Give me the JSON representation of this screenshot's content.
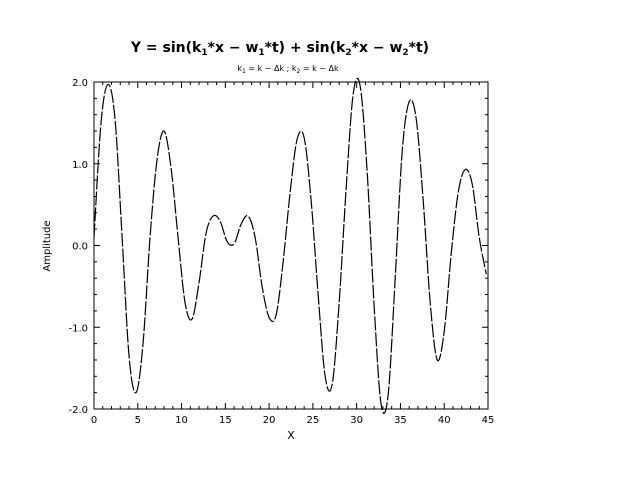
{
  "chart_data": {
    "type": "line",
    "title_parts": {
      "t1": "Y = sin(k",
      "s1": "1",
      "t2": "*x − w",
      "s2": "1",
      "t3": "*t) + sin(k",
      "s3": "2",
      "t4": "*x − w",
      "s4": "2",
      "t5": "*t)"
    },
    "subtitle_parts": {
      "a": "k",
      "b": "1",
      "c": " = k − Δk ; k",
      "d": "2",
      "e": " = k − Δk"
    },
    "xlabel": "X",
    "ylabel": "Amplitude",
    "xlim": [
      0,
      45
    ],
    "ylim": [
      -2.0,
      2.0
    ],
    "xticks": [
      0,
      5,
      10,
      15,
      20,
      25,
      30,
      35,
      40,
      45
    ],
    "xtick_labels": [
      "0",
      "5",
      "10",
      "15",
      "20",
      "25",
      "30",
      "35",
      "40",
      "45"
    ],
    "yticks": [
      -2.0,
      -1.0,
      0.0,
      1.0,
      2.0
    ],
    "ytick_labels": [
      "-2.0",
      "-1.0",
      "0.0",
      "1.0",
      "2.0"
    ],
    "grid": false,
    "line_color": "#000000",
    "series": [
      {
        "x": [
          0,
          0.8,
          1.6,
          2.4,
          3.2,
          4.0,
          4.8,
          5.6,
          6.4,
          7.2,
          8.0,
          8.8,
          9.6,
          10.4,
          11.2,
          12.0,
          12.8,
          13.6,
          14.4,
          15.2,
          16.0,
          16.8,
          17.6,
          18.4,
          19.2,
          20.0,
          20.8,
          21.6,
          22.4,
          23.2,
          24.0,
          24.8,
          25.6,
          26.4,
          27.2,
          28.0,
          28.8,
          29.6,
          30.4,
          31.2,
          32.0,
          32.8,
          33.6,
          34.4,
          35.2,
          36.0,
          36.8,
          37.6,
          38.4,
          39.2,
          40.0,
          40.8,
          41.6,
          42.4,
          43.2,
          44.0,
          44.8
        ],
        "y": [
          0.1,
          1.5,
          1.97,
          1.55,
          0.12,
          -1.35,
          -1.8,
          -1.2,
          0.1,
          1.05,
          1.4,
          0.95,
          0.1,
          -0.7,
          -0.9,
          -0.45,
          0.15,
          0.36,
          0.3,
          0.05,
          0.02,
          0.26,
          0.36,
          0.1,
          -0.5,
          -0.88,
          -0.85,
          -0.2,
          0.65,
          1.3,
          1.32,
          0.55,
          -0.6,
          -1.6,
          -1.7,
          -0.7,
          0.7,
          1.85,
          1.95,
          0.9,
          -0.75,
          -1.95,
          -1.82,
          -0.4,
          1.15,
          1.76,
          1.55,
          0.55,
          -0.7,
          -1.4,
          -1.05,
          -0.1,
          0.65,
          0.93,
          0.75,
          0.1,
          -0.35
        ]
      }
    ]
  }
}
